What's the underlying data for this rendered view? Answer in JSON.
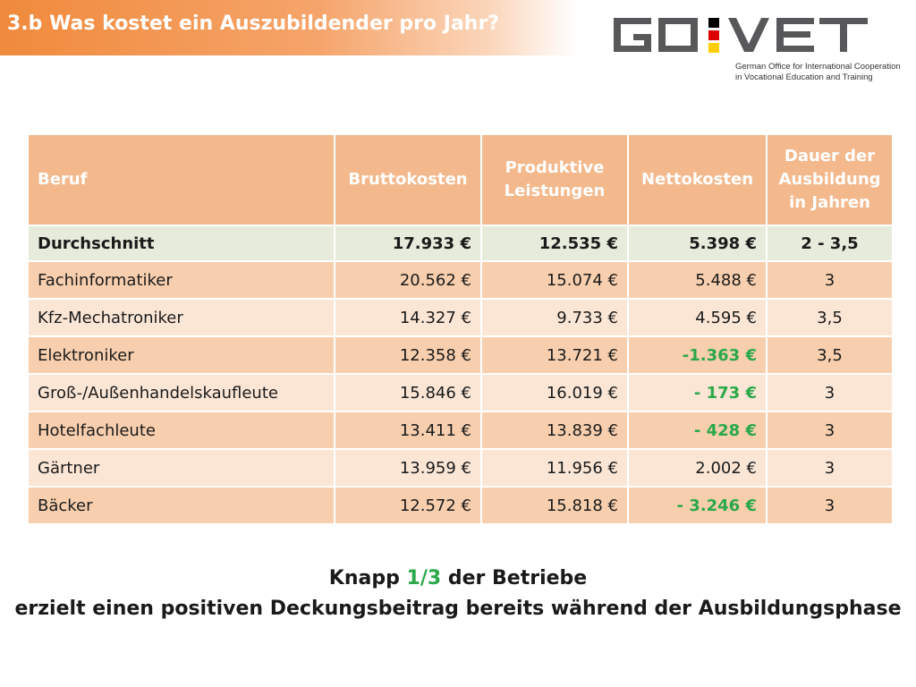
{
  "slide": {
    "title": "3.b Was kostet ein Auszubildender pro Jahr?"
  },
  "logo": {
    "brand": "GO:VET",
    "subtitle_line1": "German Office for International Cooperation",
    "subtitle_line2": "in Vocational Education and Training",
    "colors": {
      "text": "#58585a",
      "black": "#000000",
      "red": "#dd0000",
      "gold": "#ffce00"
    }
  },
  "table": {
    "headers": {
      "beruf": "Beruf",
      "brutto": "Bruttokosten",
      "produktiv_1": "Produktive",
      "produktiv_2": "Leistungen",
      "netto": "Nettokosten",
      "dauer_1": "Dauer der",
      "dauer_2": "Ausbildung",
      "dauer_3": "in Jahren"
    },
    "average": {
      "beruf": "Durchschnitt",
      "brutto": "17.933 €",
      "produktiv": "12.535 €",
      "netto": "5.398 €",
      "dauer": "2 - 3,5"
    },
    "rows": [
      {
        "beruf": "Fachinformatiker",
        "brutto": "20.562 €",
        "produktiv": "15.074 €",
        "netto": "5.488 €",
        "dauer": "3"
      },
      {
        "beruf": "Kfz-Mechatroniker",
        "brutto": "14.327 €",
        "produktiv": "9.733 €",
        "netto": "4.595 €",
        "dauer": "3,5"
      },
      {
        "beruf": "Elektroniker",
        "brutto": "12.358 €",
        "produktiv": "13.721 €",
        "netto": "-1.363 €",
        "dauer": "3,5"
      },
      {
        "beruf": "Groß-/Außenhandelskaufleute",
        "brutto": "15.846 €",
        "produktiv": "16.019 €",
        "netto": "- 173 €",
        "dauer": "3"
      },
      {
        "beruf": "Hotelfachleute",
        "brutto": "13.411 €",
        "produktiv": "13.839 €",
        "netto": "- 428 €",
        "dauer": "3"
      },
      {
        "beruf": "Gärtner",
        "brutto": "13.959 €",
        "produktiv": "11.956 €",
        "netto": "2.002 €",
        "dauer": "3"
      },
      {
        "beruf": "Bäcker",
        "brutto": "12.572 €",
        "produktiv": "15.818 €",
        "netto": "- 3.246 €",
        "dauer": "3"
      }
    ],
    "colors": {
      "header": "#f3b98c",
      "average": "#e7ebdb",
      "row_odd": "#f8cfae",
      "row_even": "#fbe6d6",
      "negative": "#2aa84a"
    }
  },
  "footer": {
    "line1_pre": "Knapp ",
    "line1_highlight": "1/3",
    "line1_post": " der Betriebe",
    "line2": "erzielt einen positiven Deckungsbeitrag bereits während der Ausbildungsphase"
  }
}
